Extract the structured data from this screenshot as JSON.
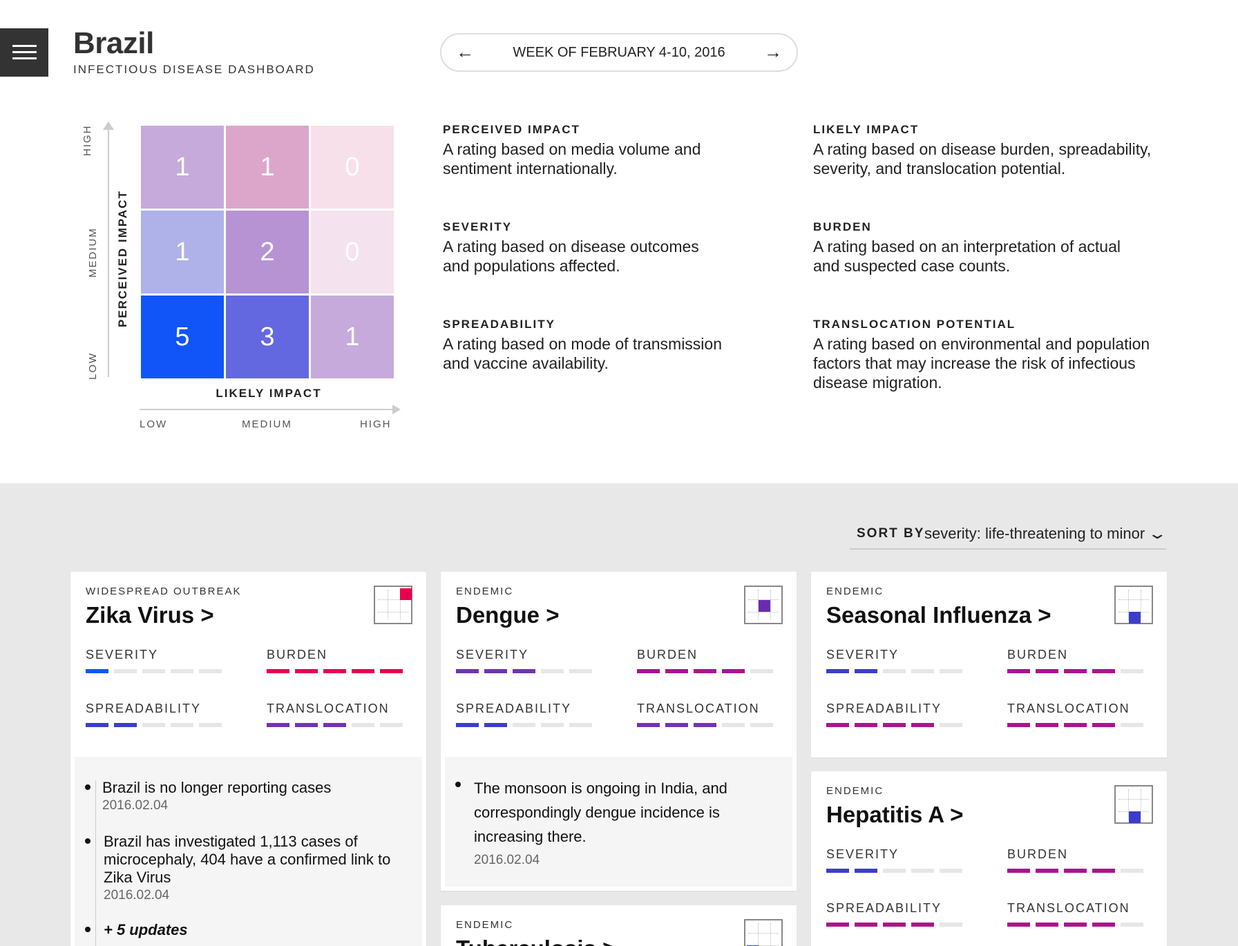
{
  "header": {
    "title": "Brazil",
    "subtitle": "INFECTIOUS DISEASE DASHBOARD",
    "week_label": "WEEK OF FEBRUARY 4-10, 2016",
    "prev_icon": "arrow-left-icon",
    "next_icon": "arrow-right-icon",
    "menu_icon": "hamburger-menu-icon"
  },
  "matrix": {
    "y_title": "PERCEIVED IMPACT",
    "x_title": "LIKELY IMPACT",
    "y_labels": [
      "HIGH",
      "MEDIUM",
      "LOW"
    ],
    "x_labels": [
      "LOW",
      "MEDIUM",
      "HIGH"
    ],
    "rows": [
      [
        "1",
        "1",
        "0"
      ],
      [
        "1",
        "2",
        "0"
      ],
      [
        "5",
        "3",
        "1"
      ]
    ],
    "colors": [
      [
        "#c6aadb",
        "#dca6cb",
        "#f8e0ea"
      ],
      [
        "#aeb2e9",
        "#b793d3",
        "#f4e3ee"
      ],
      [
        "#1155f8",
        "#6468e0",
        "#c6aadb"
      ]
    ]
  },
  "definitions": {
    "perceived_impact": {
      "title": "PERCEIVED IMPACT",
      "text": "A rating based on media volume and sentiment internationally."
    },
    "likely_impact": {
      "title": "LIKELY IMPACT",
      "text": "A rating based on disease burden, spreadability, severity, and translocation potential."
    },
    "severity": {
      "title": "SEVERITY",
      "text": "A rating based on disease outcomes and populations affected."
    },
    "burden": {
      "title": "BURDEN",
      "text": "A rating based on an interpretation of actual and suspected case counts."
    },
    "spreadability": {
      "title": "SPREADABILITY",
      "text": "A rating based on mode of transmission and vaccine availability."
    },
    "translocation": {
      "title": "TRANSLOCATION POTENTIAL",
      "text": "A rating based on environmental and population factors that may increase the risk of infectious disease migration."
    }
  },
  "sort": {
    "label": "SORT BY",
    "value": "severity: life-threatening to minor",
    "icon": "chevron-down-icon"
  },
  "metric_labels": {
    "severity": "SEVERITY",
    "burden": "BURDEN",
    "spreadability": "SPREADABILITY",
    "translocation": "TRANSLOCATION"
  },
  "cards": {
    "zika": {
      "category": "WIDESPREAD OUTBREAK",
      "name": "Zika Virus",
      "chevron": ">",
      "dot_color": "#e8004e",
      "metrics": {
        "severity": {
          "level": 1,
          "color": "#1155f8"
        },
        "burden": {
          "level": 5,
          "color": "#e8004e"
        },
        "spreadability": {
          "level": 2,
          "color": "#3c3ec9"
        },
        "translocation": {
          "level": 3,
          "color": "#7133b0"
        }
      },
      "notes": [
        {
          "text": "Brazil is no longer reporting cases",
          "date": "2016.02.04"
        },
        {
          "text": "Brazil has investigated 1,113 cases of microcephaly, 404 have a confirmed link to Zika Virus",
          "date": "2016.02.04"
        }
      ],
      "more": "+ 5 updates"
    },
    "dengue": {
      "category": "ENDEMIC",
      "name": "Dengue",
      "chevron": ">",
      "dot_color": "#6a2bb0",
      "metrics": {
        "severity": {
          "level": 3,
          "color": "#7133b0"
        },
        "burden": {
          "level": 4,
          "color": "#a8168c"
        },
        "spreadability": {
          "level": 2,
          "color": "#3c3ec9"
        },
        "translocation": {
          "level": 3,
          "color": "#7133b0"
        }
      },
      "notes": [
        {
          "text": "The monsoon is ongoing in India, and correspondingly dengue incidence is increasing there.",
          "date": "2016.02.04"
        }
      ]
    },
    "influenza": {
      "category": "ENDEMIC",
      "name": "Seasonal Influenza",
      "chevron": ">",
      "dot_color": "#3c3ec9",
      "metrics": {
        "severity": {
          "level": 2,
          "color": "#3c3ec9"
        },
        "burden": {
          "level": 4,
          "color": "#a8168c"
        },
        "spreadability": {
          "level": 4,
          "color": "#a8168c"
        },
        "translocation": {
          "level": 4,
          "color": "#a8168c"
        }
      }
    },
    "hepatitis": {
      "category": "ENDEMIC",
      "name": "Hepatitis A",
      "chevron": ">",
      "dot_color": "#3c3ec9",
      "metrics": {
        "severity": {
          "level": 2,
          "color": "#3c3ec9"
        },
        "burden": {
          "level": 4,
          "color": "#a8168c"
        },
        "spreadability": {
          "level": 4,
          "color": "#a8168c"
        },
        "translocation": {
          "level": 4,
          "color": "#a8168c"
        }
      }
    },
    "tuberculosis": {
      "category": "ENDEMIC",
      "name": "Tuberculosis",
      "chevron": ">",
      "dot_color": "#3c3ec9"
    }
  }
}
